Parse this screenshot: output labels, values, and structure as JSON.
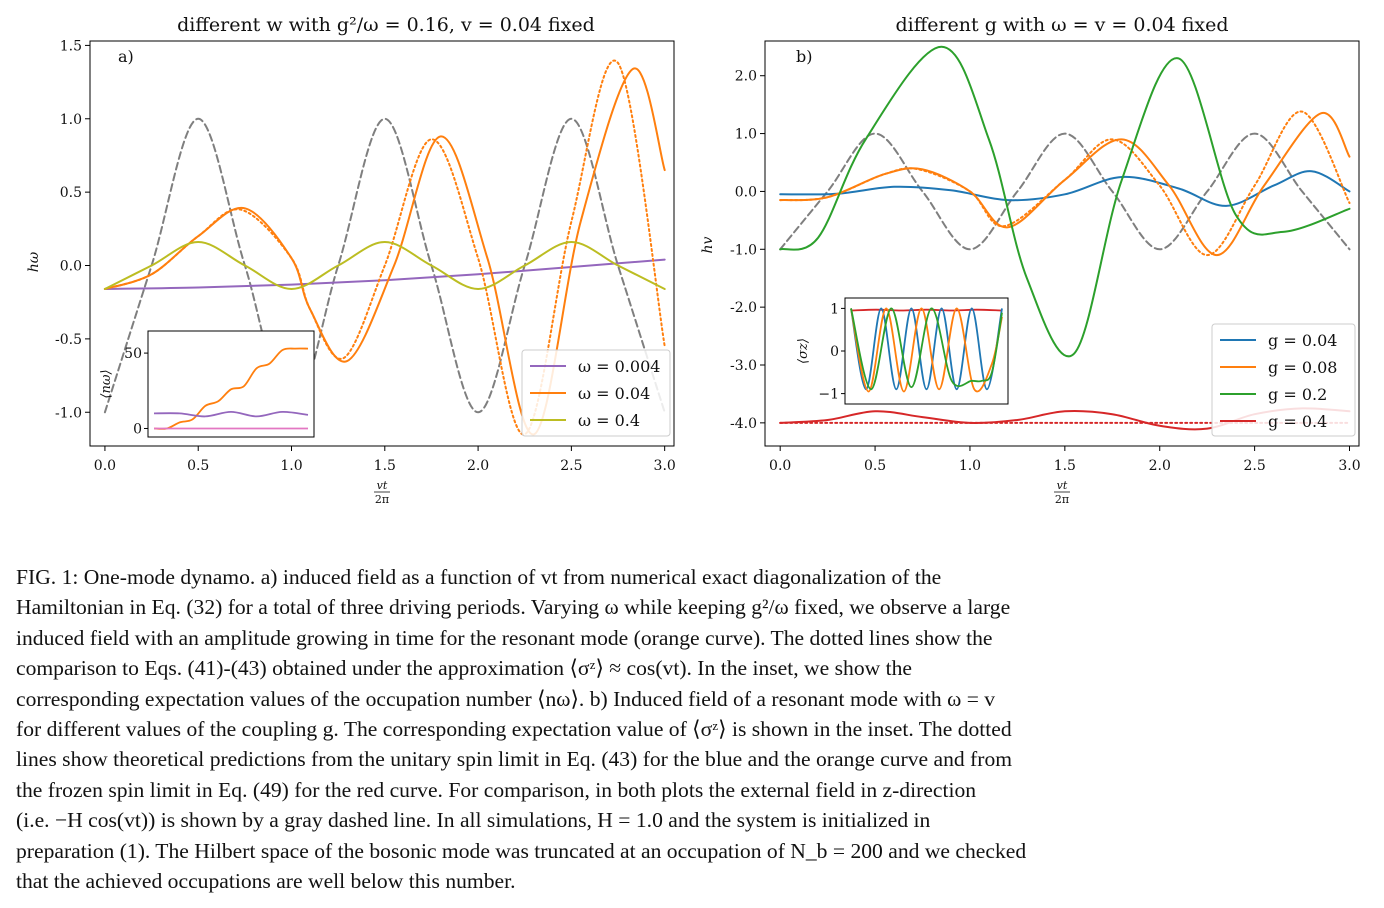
{
  "chart_data": [
    {
      "type": "line",
      "panel_label": "a)",
      "title": "different w with g²/ω = 0.16, v = 0.04 fixed",
      "xlabel_num": "vt",
      "xlabel_den": "2π",
      "ylabel": "hω",
      "xlim": [
        -0.08,
        3.05
      ],
      "ylim": [
        -1.23,
        1.53
      ],
      "xticks": [
        "0.0",
        "0.5",
        "1.0",
        "1.5",
        "2.0",
        "2.5",
        "3.0"
      ],
      "yticks": [
        "1.5",
        "1.0",
        "0.5",
        "0.0",
        "-0.5",
        "-1.0"
      ],
      "grid": false,
      "legend_position": "lower-right",
      "series": [
        {
          "name": "",
          "color": "#7f7f7f",
          "style": "dashed",
          "x": [
            0,
            0.25,
            0.5,
            0.75,
            1.0,
            1.25,
            1.5,
            1.75,
            2.0,
            2.25,
            2.5,
            2.75,
            3.0
          ],
          "y": [
            -1,
            0,
            1,
            0,
            -1,
            0,
            1,
            0,
            -1,
            0,
            1,
            0,
            -1
          ]
        },
        {
          "name": "ω = 0.004",
          "color": "#9467bd",
          "style": "solid",
          "x": [
            0,
            0.5,
            1.0,
            1.5,
            2.0,
            2.5,
            3.0
          ],
          "y": [
            -0.16,
            -0.15,
            -0.13,
            -0.1,
            -0.06,
            -0.01,
            0.04
          ]
        },
        {
          "name": "ω = 0.04",
          "color": "#ff7f0e",
          "style": "solid",
          "x": [
            0,
            0.25,
            0.5,
            0.75,
            1.0,
            1.1,
            1.3,
            1.55,
            1.8,
            2.05,
            2.3,
            2.55,
            2.83,
            3.0
          ],
          "y": [
            -0.16,
            -0.06,
            0.2,
            0.39,
            0.05,
            -0.3,
            -0.65,
            0.0,
            0.88,
            0.05,
            -1.15,
            0.3,
            1.34,
            0.65
          ]
        },
        {
          "name": "",
          "color": "#ff7f0e",
          "style": "dotted",
          "x": [
            0,
            0.25,
            0.5,
            0.73,
            1.0,
            1.1,
            1.28,
            1.5,
            1.75,
            2.0,
            2.25,
            2.5,
            2.75,
            3.0
          ],
          "y": [
            -0.16,
            -0.06,
            0.2,
            0.38,
            0.05,
            -0.3,
            -0.63,
            0.0,
            0.86,
            0.05,
            -1.15,
            0.3,
            1.38,
            -0.55
          ]
        },
        {
          "name": "ω = 0.4",
          "color": "#bcbd22",
          "style": "solid",
          "x": [
            0,
            0.25,
            0.5,
            0.75,
            1.0,
            1.25,
            1.5,
            1.75,
            2.0,
            2.25,
            2.5,
            2.75,
            3.0
          ],
          "y": [
            -0.16,
            0.0,
            0.16,
            0.0,
            -0.16,
            0.0,
            0.16,
            0.0,
            -0.16,
            0.0,
            0.16,
            0.0,
            -0.16
          ]
        }
      ],
      "inset": {
        "ylabel": "⟨nω⟩",
        "yticks": [
          "50",
          "0"
        ],
        "ylim": [
          -3,
          62
        ],
        "xlim": [
          0,
          3
        ],
        "series": [
          {
            "color": "#ff7f0e",
            "x": [
              0,
              0.25,
              0.5,
              0.75,
              1.0,
              1.25,
              1.5,
              1.75,
              2.0,
              2.25,
              2.5,
              2.75,
              3.0
            ],
            "y": [
              0,
              0,
              4,
              6,
              15,
              18,
              26,
              28,
              40,
              43,
              52,
              53,
              53
            ]
          },
          {
            "color": "#9467bd",
            "x": [
              0,
              0.5,
              1.0,
              1.5,
              2.0,
              2.5,
              3.0
            ],
            "y": [
              10,
              10,
              8,
              11,
              8,
              11,
              9
            ]
          },
          {
            "color": "#e377c2",
            "x": [
              0,
              3.0
            ],
            "y": [
              0,
              0
            ]
          }
        ]
      }
    },
    {
      "type": "line",
      "panel_label": "b)",
      "title": "different g with ω = v = 0.04 fixed",
      "xlabel_num": "vt",
      "xlabel_den": "2π",
      "ylabel": "hv",
      "xlim": [
        -0.08,
        3.05
      ],
      "ylim": [
        -4.4,
        2.6
      ],
      "xticks": [
        "0.0",
        "0.5",
        "1.0",
        "1.5",
        "2.0",
        "2.5",
        "3.0"
      ],
      "yticks": [
        "2.0",
        "1.0",
        "0.0",
        "-1.0",
        "-2.0",
        "-3.0",
        "-4.0"
      ],
      "grid": false,
      "legend_position": "lower-right",
      "series": [
        {
          "name": "",
          "color": "#7f7f7f",
          "style": "dashed",
          "x": [
            0,
            0.25,
            0.5,
            0.75,
            1.0,
            1.25,
            1.5,
            1.75,
            2.0,
            2.25,
            2.5,
            2.75,
            3.0
          ],
          "y": [
            -1,
            0,
            1,
            0,
            -1,
            0,
            1,
            0,
            -1,
            0,
            1,
            0,
            -1
          ]
        },
        {
          "name": "g = 0.04",
          "color": "#1f77b4",
          "style": "solid",
          "x": [
            0,
            0.3,
            0.6,
            0.9,
            1.2,
            1.5,
            1.8,
            2.1,
            2.35,
            2.6,
            2.8,
            3.0
          ],
          "y": [
            -0.05,
            -0.04,
            0.08,
            0.02,
            -0.15,
            -0.05,
            0.25,
            0.05,
            -0.25,
            0.1,
            0.35,
            0.0
          ]
        },
        {
          "name": "g = 0.08",
          "color": "#ff7f0e",
          "style": "solid",
          "x": [
            0,
            0.25,
            0.55,
            0.75,
            1.0,
            1.2,
            1.5,
            1.8,
            2.05,
            2.3,
            2.55,
            2.85,
            3.0
          ],
          "y": [
            -0.15,
            -0.1,
            0.3,
            0.38,
            0.0,
            -0.62,
            0.2,
            0.9,
            0.1,
            -1.1,
            0.1,
            1.35,
            0.6
          ]
        },
        {
          "name": "",
          "color": "#ff7f0e",
          "style": "dotted",
          "x": [
            0,
            0.25,
            0.55,
            0.73,
            1.0,
            1.18,
            1.5,
            1.75,
            2.0,
            2.25,
            2.5,
            2.75,
            3.0
          ],
          "y": [
            -0.15,
            -0.1,
            0.3,
            0.38,
            0.0,
            -0.6,
            0.2,
            0.9,
            0.1,
            -1.1,
            0.1,
            1.38,
            -0.2
          ]
        },
        {
          "name": "g = 0.2",
          "color": "#2ca02c",
          "style": "solid",
          "x": [
            0,
            0.2,
            0.45,
            0.85,
            1.1,
            1.3,
            1.55,
            1.8,
            2.1,
            2.4,
            2.65,
            3.0
          ],
          "y": [
            -1,
            -0.8,
            0.9,
            2.5,
            0.9,
            -1.5,
            -2.8,
            0.2,
            2.3,
            -0.4,
            -0.7,
            -0.3
          ]
        },
        {
          "name": "g = 0.4",
          "color": "#d62728",
          "style": "solid",
          "x": [
            0,
            0.25,
            0.5,
            0.75,
            1.0,
            1.25,
            1.5,
            1.75,
            2.0,
            2.25,
            2.5,
            2.75,
            3.0
          ],
          "y": [
            -4.0,
            -3.95,
            -3.8,
            -3.9,
            -4.0,
            -3.95,
            -3.8,
            -3.85,
            -4.05,
            -4.1,
            -3.85,
            -3.75,
            -3.8
          ]
        },
        {
          "name": "",
          "color": "#d62728",
          "style": "dotted",
          "x": [
            0,
            3.0
          ],
          "y": [
            -4.0,
            -4.0
          ]
        }
      ],
      "inset": {
        "ylabel": "⟨σz⟩",
        "yticks": [
          "1",
          "0",
          "−1"
        ],
        "ylim": [
          -1.15,
          1.15
        ],
        "xlim": [
          0,
          3
        ],
        "series": [
          {
            "color": "#d62728",
            "x": [
              0,
              0.5,
              1.0,
              1.5,
              2.0,
              2.5,
              3.0
            ],
            "y": [
              0.95,
              0.97,
              0.95,
              0.97,
              0.95,
              0.97,
              0.95
            ]
          },
          {
            "color": "#1f77b4",
            "x": [
              0,
              0.3,
              0.6,
              0.9,
              1.2,
              1.5,
              1.8,
              2.1,
              2.4,
              2.7,
              3.0
            ],
            "y": [
              1,
              -0.9,
              1,
              -0.9,
              1,
              -0.9,
              1,
              -0.9,
              1,
              -0.9,
              1
            ]
          },
          {
            "color": "#ff7f0e",
            "x": [
              0,
              0.35,
              0.7,
              1.05,
              1.4,
              1.75,
              2.1,
              2.45,
              2.8,
              3.0
            ],
            "y": [
              1,
              -0.95,
              1,
              -0.95,
              1,
              -0.9,
              1,
              -0.9,
              -0.3,
              0.8
            ]
          },
          {
            "color": "#2ca02c",
            "x": [
              0,
              0.4,
              0.8,
              1.2,
              1.6,
              2.0,
              2.4,
              2.6,
              2.8,
              3.0
            ],
            "y": [
              1,
              -0.9,
              1,
              -0.85,
              1,
              -0.7,
              -0.7,
              -0.7,
              -0.5,
              0.9
            ]
          }
        ]
      }
    }
  ],
  "caption": {
    "lines": [
      "FIG. 1: One-mode dynamo. a) induced field as a function of vt from numerical exact diagonalization of the",
      "Hamiltonian in Eq. (32) for a total of three driving periods. Varying ω while keeping g²/ω fixed, we observe a large",
      "induced field with an amplitude growing in time for the resonant mode (orange curve). The dotted lines show the",
      "comparison to Eqs. (41)-(43) obtained under the approximation ⟨σᶻ⟩ ≈ cos(vt). In the inset, we show the",
      "corresponding expectation values of the occupation number ⟨nω⟩. b) Induced field of a resonant mode with ω = v",
      "for different values of the coupling g. The corresponding expectation value of ⟨σᶻ⟩ is shown in the inset. The dotted",
      "lines show theoretical predictions from the unitary spin limit in Eq. (43) for the blue and the orange curve and from",
      "the frozen spin limit in Eq. (49) for the red curve. For comparison, in both plots the external field in z-direction",
      "(i.e. −H cos(vt)) is shown by a gray dashed line. In all simulations, H = 1.0 and the system is initialized in",
      "preparation (1). The Hilbert space of the bosonic mode was truncated at an occupation of N_b = 200 and we checked",
      "that the achieved occupations are well below this number."
    ]
  }
}
